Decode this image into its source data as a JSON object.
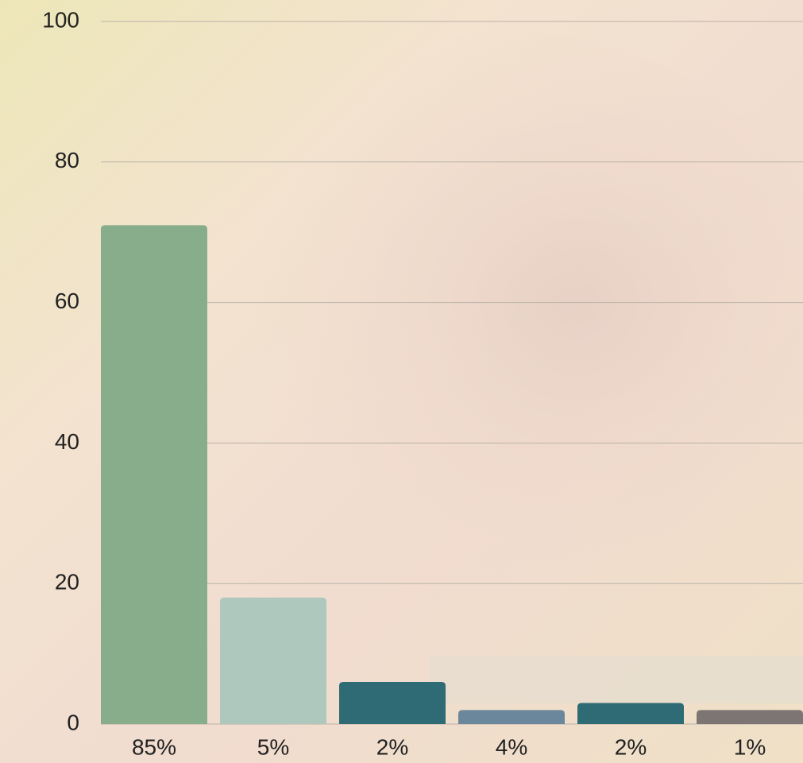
{
  "chart_data": {
    "type": "bar",
    "categories": [
      "85%",
      "5%",
      "2%",
      "4%",
      "2%",
      "1%"
    ],
    "values": [
      71,
      18,
      6,
      2,
      3,
      2
    ],
    "colors": [
      "#87ad8b",
      "#aec8bd",
      "#2e6b74",
      "#6b879b",
      "#2e6b74",
      "#7d7574"
    ],
    "ylim": [
      0,
      100
    ],
    "yticks": [
      0,
      20,
      40,
      60,
      80,
      100
    ],
    "grid": true
  }
}
